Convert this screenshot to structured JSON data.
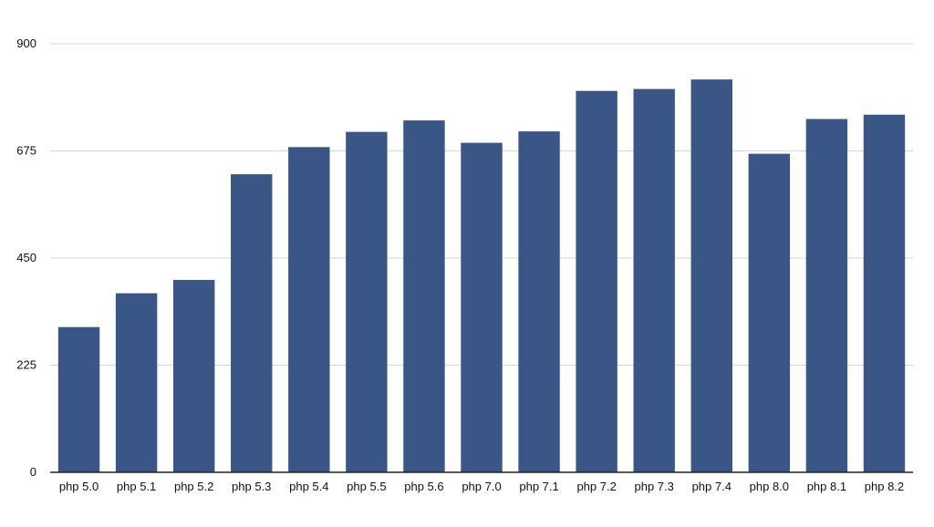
{
  "chart_data": {
    "type": "bar",
    "title": "",
    "xlabel": "",
    "ylabel": "",
    "categories": [
      "php 5.0",
      "php 5.1",
      "php 5.2",
      "php 5.3",
      "php 5.4",
      "php 5.5",
      "php 5.6",
      "php 7.0",
      "php 7.1",
      "php 7.2",
      "php 7.3",
      "php 7.4",
      "php 8.0",
      "php 8.1",
      "php 8.2"
    ],
    "values": [
      305,
      376,
      404,
      626,
      683,
      715,
      739,
      692,
      716,
      801,
      805,
      825,
      669,
      742,
      751
    ],
    "ylim": [
      0,
      900
    ],
    "yticks": [
      0,
      225,
      450,
      675,
      900
    ],
    "grid": "horizontal",
    "legend": "none",
    "colors": {
      "bar": "#3a5687",
      "grid": "#d4d4d4",
      "axis": "#222222",
      "text": "#111111"
    }
  }
}
